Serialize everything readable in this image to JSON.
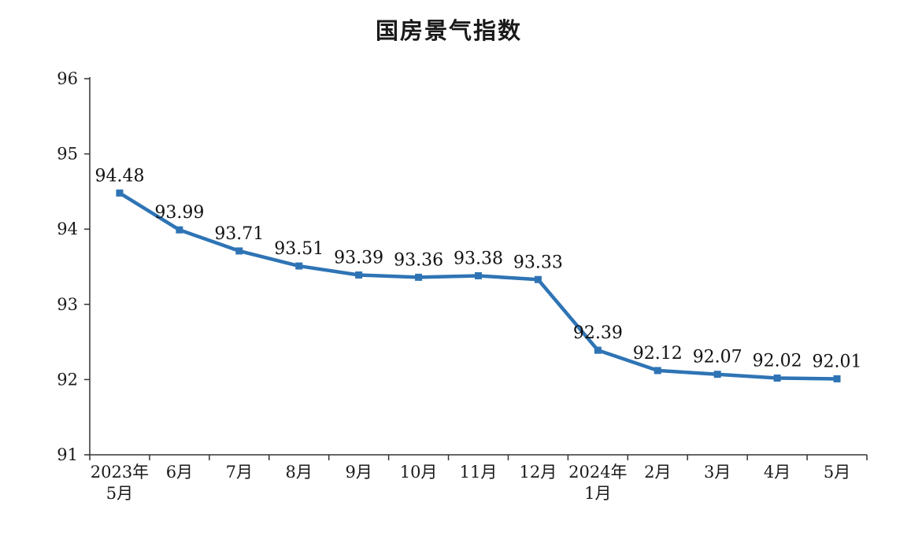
{
  "chart_data": {
    "type": "line",
    "title": "国房景气指数",
    "categories": [
      [
        "2023年",
        "5月"
      ],
      [
        "6月"
      ],
      [
        "7月"
      ],
      [
        "8月"
      ],
      [
        "9月"
      ],
      [
        "10月"
      ],
      [
        "11月"
      ],
      [
        "12月"
      ],
      [
        "2024年",
        "1月"
      ],
      [
        "2月"
      ],
      [
        "3月"
      ],
      [
        "4月"
      ],
      [
        "5月"
      ]
    ],
    "values": [
      94.48,
      93.99,
      93.71,
      93.51,
      93.39,
      93.36,
      93.38,
      93.33,
      92.39,
      92.12,
      92.07,
      92.02,
      92.01
    ],
    "data_labels": [
      "94.48",
      "93.99",
      "93.71",
      "93.51",
      "93.39",
      "93.36",
      "93.38",
      "93.33",
      "92.39",
      "92.12",
      "92.07",
      "92.02",
      "92.01"
    ],
    "ylim": [
      91,
      96
    ],
    "ytick_step": 1,
    "yticks": [
      91,
      92,
      93,
      94,
      95,
      96
    ],
    "grid": false,
    "legend": null,
    "line_color": "#2E74B5",
    "marker": "square",
    "axis_color": "#333333",
    "label_color": "#111111"
  }
}
